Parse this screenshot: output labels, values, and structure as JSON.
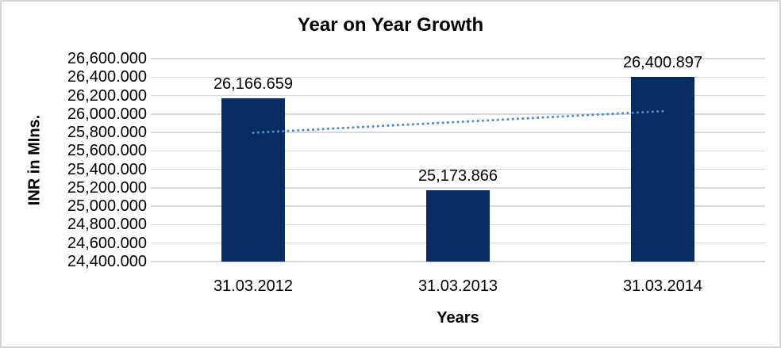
{
  "frame": {
    "background": "#ffffff",
    "border_color": "#d5d5d5"
  },
  "chart_data": {
    "type": "bar",
    "title": "Year on Year Growth",
    "xlabel": "Years",
    "ylabel": "INR in MIns.",
    "categories": [
      "31.03.2012",
      "31.03.2013",
      "31.03.2014"
    ],
    "values": [
      26166.659,
      25173.866,
      26400.897
    ],
    "data_labels": [
      "26,166.659",
      "25,173.866",
      "26,400.897"
    ],
    "ylim": [
      24400,
      26600
    ],
    "y_tick_step": 200,
    "y_tick_labels": [
      "26,600.000",
      "26,400.000",
      "26,200.000",
      "26,000.000",
      "25,800.000",
      "25,600.000",
      "25,400.000",
      "25,200.000",
      "25,000.000",
      "24,800.000",
      "24,600.000",
      "24,400.000"
    ],
    "grid": true,
    "legend": "none",
    "bar_color": "#082b61",
    "gridline_color": "#d9d9d9",
    "text_color": "#000000",
    "trendline": {
      "type": "linear",
      "style": "dotted",
      "color": "#4e8ad0",
      "start_value": 25797,
      "end_value": 26031
    }
  }
}
